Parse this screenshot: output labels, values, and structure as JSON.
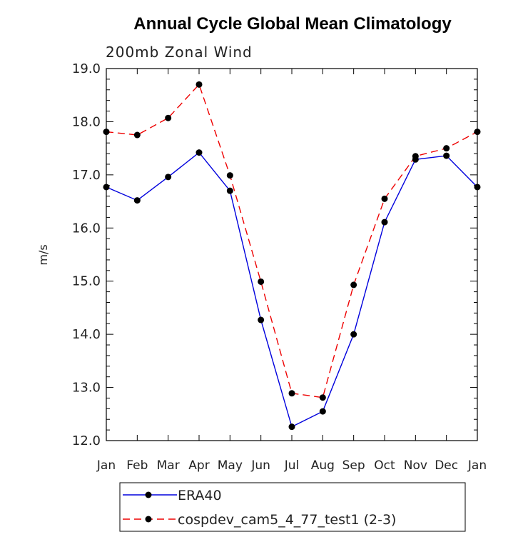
{
  "chart_data": {
    "type": "line",
    "title": "Annual Cycle Global Mean Climatology",
    "subtitle": "200mb Zonal Wind",
    "xlabel": "",
    "ylabel": "m/s",
    "categories": [
      "Jan",
      "Feb",
      "Mar",
      "Apr",
      "May",
      "Jun",
      "Jul",
      "Aug",
      "Sep",
      "Oct",
      "Nov",
      "Dec",
      "Jan"
    ],
    "ylim": [
      12.0,
      19.0
    ],
    "yticks": [
      "12.0",
      "13.0",
      "14.0",
      "15.0",
      "16.0",
      "17.0",
      "18.0",
      "19.0"
    ],
    "grid": false,
    "legend_position": "bottom",
    "series": [
      {
        "name": "ERA40",
        "color": "#0000dd",
        "line_style": "solid",
        "values": [
          16.77,
          16.52,
          16.96,
          17.42,
          16.7,
          14.27,
          12.26,
          12.55,
          14.0,
          16.11,
          17.29,
          17.36,
          16.77
        ]
      },
      {
        "name": "cospdev_cam5_4_77_test1 (2-3)",
        "color": "#ee0000",
        "line_style": "dashed",
        "values": [
          17.81,
          17.75,
          18.07,
          18.7,
          16.99,
          14.99,
          12.89,
          12.81,
          14.93,
          16.55,
          17.35,
          17.5,
          17.81
        ]
      }
    ]
  }
}
